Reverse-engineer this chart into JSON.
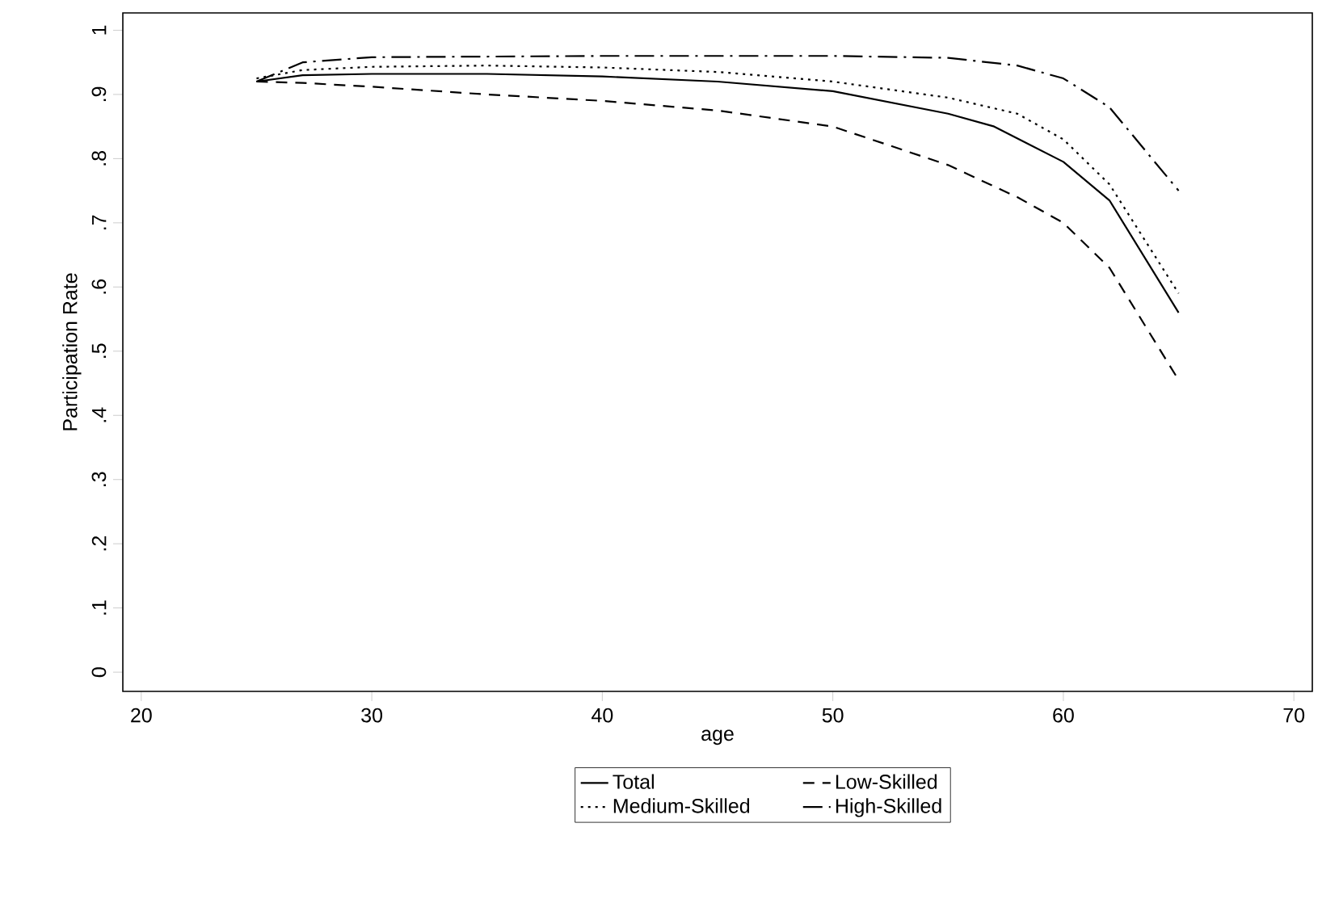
{
  "chart_data": {
    "type": "line",
    "xlabel": "age",
    "ylabel": "Participation Rate",
    "series": [
      {
        "name": "Total",
        "color": "#000000",
        "line_style": "solid",
        "x": [
          25,
          27,
          30,
          35,
          40,
          45,
          50,
          55,
          57,
          60,
          62,
          65
        ],
        "values": [
          0.92,
          0.93,
          0.932,
          0.932,
          0.928,
          0.92,
          0.905,
          0.87,
          0.85,
          0.795,
          0.735,
          0.56
        ]
      },
      {
        "name": "Low-Skilled",
        "color": "#000000",
        "line_style": "dashed",
        "x": [
          25,
          27,
          30,
          35,
          40,
          45,
          50,
          55,
          58,
          60,
          62,
          65
        ],
        "values": [
          0.92,
          0.918,
          0.912,
          0.9,
          0.89,
          0.875,
          0.85,
          0.79,
          0.74,
          0.7,
          0.63,
          0.455
        ]
      },
      {
        "name": "Medium-Skilled",
        "color": "#000000",
        "line_style": "dotted",
        "x": [
          25,
          27,
          30,
          35,
          40,
          45,
          50,
          55,
          58,
          60,
          62,
          65
        ],
        "values": [
          0.925,
          0.938,
          0.943,
          0.945,
          0.942,
          0.935,
          0.92,
          0.895,
          0.87,
          0.83,
          0.76,
          0.59
        ]
      },
      {
        "name": "High-Skilled",
        "color": "#000000",
        "line_style": "dashdot",
        "x": [
          25,
          27,
          30,
          40,
          50,
          55,
          58,
          60,
          62,
          65
        ],
        "values": [
          0.92,
          0.95,
          0.958,
          0.96,
          0.96,
          0.957,
          0.945,
          0.925,
          0.88,
          0.75
        ]
      }
    ],
    "xlim": [
      19.2,
      70.8
    ],
    "ylim": [
      -0.03,
      1.027
    ],
    "xticks": [
      20,
      30,
      40,
      50,
      60,
      70
    ],
    "yticks": [
      0,
      {
        "value": 0.1,
        "label": ".1"
      },
      {
        "value": 0.2,
        "label": ".2"
      },
      {
        "value": 0.3,
        "label": ".3"
      },
      {
        "value": 0.4,
        "label": ".4"
      },
      {
        "value": 0.5,
        "label": ".5"
      },
      {
        "value": 0.6,
        "label": ".6"
      },
      {
        "value": 0.7,
        "label": ".7"
      },
      {
        "value": 0.8,
        "label": ".8"
      },
      {
        "value": 0.9,
        "label": ".9"
      },
      1
    ],
    "grid": false,
    "legend": "bottom",
    "marker": "none"
  }
}
